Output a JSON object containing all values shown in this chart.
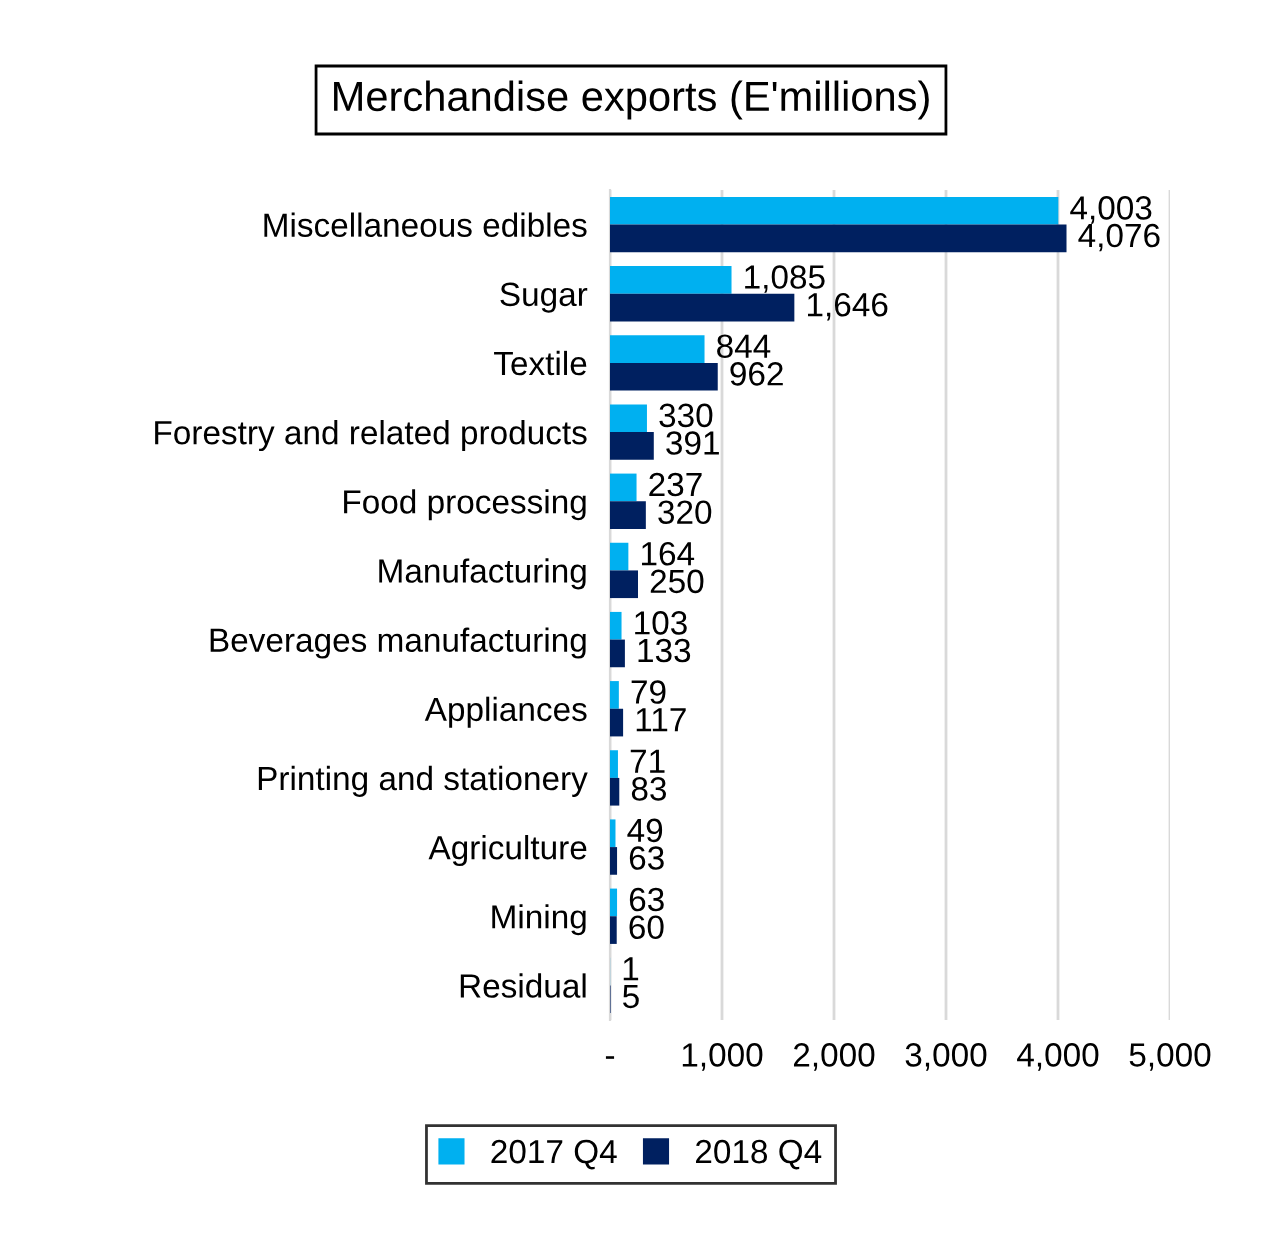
{
  "chart_data": {
    "type": "bar",
    "orientation": "horizontal",
    "title": "Merchandise exports (E'millions)",
    "categories": [
      "Miscellaneous edibles",
      "Sugar",
      "Textile",
      "Forestry and related products",
      "Food processing",
      "Manufacturing",
      "Beverages manufacturing",
      "Appliances",
      "Printing and stationery",
      "Agriculture",
      "Mining",
      "Residual"
    ],
    "series": [
      {
        "name": "2017 Q4",
        "color": "#00b0f0",
        "values": [
          4003,
          1085,
          844,
          330,
          237,
          164,
          103,
          79,
          71,
          49,
          63,
          1
        ],
        "value_labels": [
          "4,003",
          "1,085",
          "844",
          "330",
          "237",
          "164",
          "103",
          "79",
          "71",
          "49",
          "63",
          "1"
        ]
      },
      {
        "name": "2018 Q4",
        "color": "#002060",
        "values": [
          4076,
          1646,
          962,
          391,
          320,
          250,
          133,
          117,
          83,
          63,
          60,
          5
        ],
        "value_labels": [
          "4,076",
          "1,646",
          "962",
          "391",
          "320",
          "250",
          "133",
          "117",
          "83",
          "63",
          "60",
          "5"
        ]
      }
    ],
    "xlim": [
      0,
      5000
    ],
    "xticks": [
      {
        "value": 0,
        "label": "-"
      },
      {
        "value": 1000,
        "label": "1,000"
      },
      {
        "value": 2000,
        "label": "2,000"
      },
      {
        "value": 3000,
        "label": "3,000"
      },
      {
        "value": 4000,
        "label": "4,000"
      },
      {
        "value": 5000,
        "label": "5,000"
      }
    ],
    "grid": "x",
    "legend": "bottom"
  }
}
